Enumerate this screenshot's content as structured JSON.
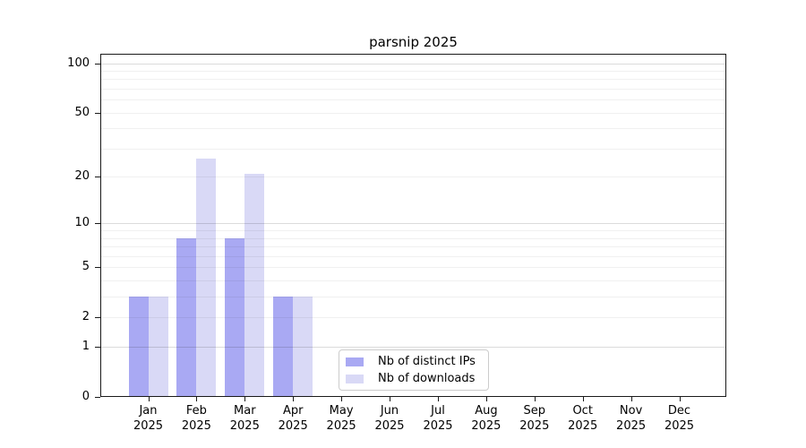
{
  "chart_data": {
    "type": "bar",
    "title": "parsnip 2025",
    "categories": [
      "Jan",
      "Feb",
      "Mar",
      "Apr",
      "May",
      "Jun",
      "Jul",
      "Aug",
      "Sep",
      "Oct",
      "Nov",
      "Dec"
    ],
    "x_tick_year": "2025",
    "series": [
      {
        "name": "Nb of distinct IPs",
        "color": "#a9a9f3",
        "values": [
          3,
          8,
          8,
          3,
          0,
          0,
          0,
          0,
          0,
          0,
          0,
          0
        ]
      },
      {
        "name": "Nb of downloads",
        "color": "#d9d9f6",
        "values": [
          3,
          26,
          21,
          3,
          0,
          0,
          0,
          0,
          0,
          0,
          0,
          0
        ]
      }
    ],
    "yscale": "log1p",
    "ylim": [
      0,
      114
    ],
    "y_ticks": [
      0,
      1,
      2,
      5,
      10,
      20,
      50,
      100
    ],
    "gridlines": {
      "major": [
        1,
        10,
        100
      ],
      "minor": [
        2,
        3,
        4,
        5,
        6,
        7,
        8,
        9,
        20,
        30,
        40,
        50,
        60,
        70,
        80,
        90
      ]
    },
    "legend": {
      "position": "lower center"
    },
    "colors": {
      "grid_major": "rgba(0,0,0,0.14)",
      "grid_minor": "rgba(0,0,0,0.06)",
      "spine": "#1a1a1a",
      "background": "#ffffff"
    }
  }
}
